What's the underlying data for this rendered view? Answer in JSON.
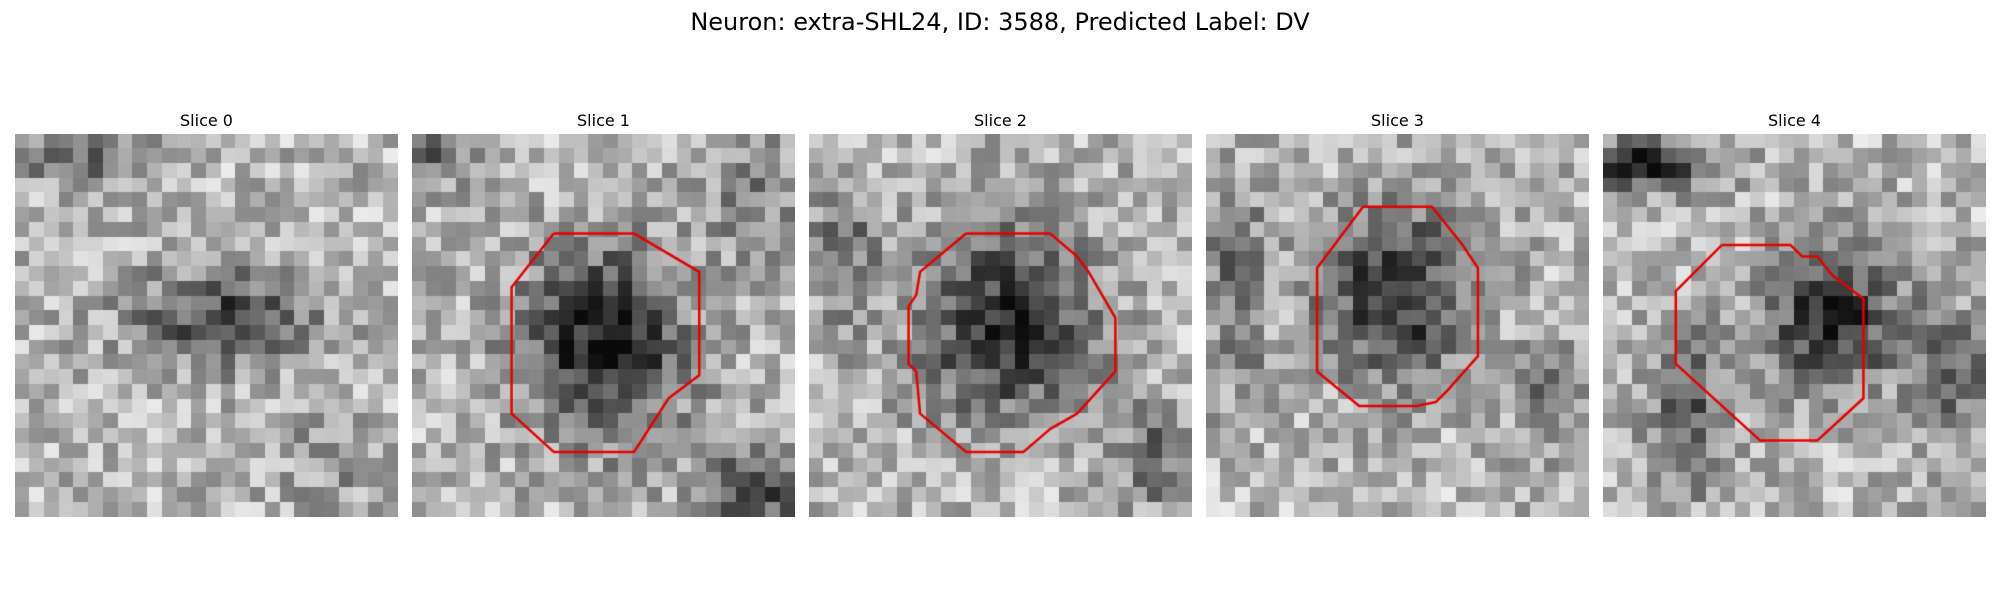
{
  "figure": {
    "title": "Neuron: extra-SHL24, ID: 3588, Predicted Label: DV"
  },
  "slices": [
    {
      "title": "Slice 0",
      "contour": []
    },
    {
      "title": "Slice 1",
      "contour": [
        [
          0.37,
          0.26
        ],
        [
          0.58,
          0.26
        ],
        [
          0.75,
          0.36
        ],
        [
          0.75,
          0.63
        ],
        [
          0.67,
          0.69
        ],
        [
          0.58,
          0.83
        ],
        [
          0.37,
          0.83
        ],
        [
          0.26,
          0.73
        ],
        [
          0.26,
          0.4
        ],
        [
          0.37,
          0.26
        ]
      ]
    },
    {
      "title": "Slice 2",
      "contour": [
        [
          0.41,
          0.26
        ],
        [
          0.63,
          0.26
        ],
        [
          0.7,
          0.32
        ],
        [
          0.73,
          0.36
        ],
        [
          0.8,
          0.48
        ],
        [
          0.8,
          0.62
        ],
        [
          0.7,
          0.73
        ],
        [
          0.63,
          0.77
        ],
        [
          0.56,
          0.83
        ],
        [
          0.41,
          0.83
        ],
        [
          0.29,
          0.73
        ],
        [
          0.28,
          0.62
        ],
        [
          0.26,
          0.6
        ],
        [
          0.26,
          0.45
        ],
        [
          0.28,
          0.42
        ],
        [
          0.29,
          0.36
        ],
        [
          0.41,
          0.26
        ]
      ]
    },
    {
      "title": "Slice 3",
      "contour": [
        [
          0.41,
          0.19
        ],
        [
          0.59,
          0.19
        ],
        [
          0.67,
          0.29
        ],
        [
          0.71,
          0.35
        ],
        [
          0.71,
          0.58
        ],
        [
          0.63,
          0.67
        ],
        [
          0.6,
          0.7
        ],
        [
          0.55,
          0.71
        ],
        [
          0.4,
          0.71
        ],
        [
          0.29,
          0.62
        ],
        [
          0.29,
          0.35
        ],
        [
          0.41,
          0.19
        ]
      ]
    },
    {
      "title": "Slice 4",
      "contour": [
        [
          0.31,
          0.29
        ],
        [
          0.49,
          0.29
        ],
        [
          0.52,
          0.32
        ],
        [
          0.56,
          0.32
        ],
        [
          0.6,
          0.37
        ],
        [
          0.68,
          0.43
        ],
        [
          0.68,
          0.69
        ],
        [
          0.56,
          0.8
        ],
        [
          0.41,
          0.8
        ],
        [
          0.19,
          0.6
        ],
        [
          0.19,
          0.41
        ],
        [
          0.31,
          0.29
        ]
      ]
    }
  ]
}
